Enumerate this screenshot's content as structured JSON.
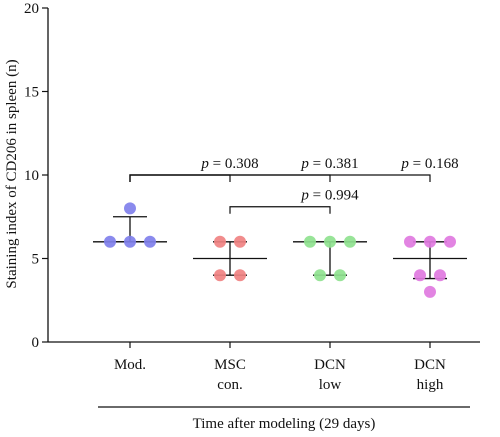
{
  "chart_data": {
    "type": "scatter",
    "title": "",
    "ylabel": "Staining index of CD206 in spleen (n)",
    "xlabel": "Time after modeling (29 days)",
    "ylim": [
      0,
      20
    ],
    "yticks": [
      0,
      5,
      10,
      15,
      20
    ],
    "grid": false,
    "groups": [
      {
        "name": "Mod.",
        "lines": [
          "Mod."
        ],
        "color": "#8080ec",
        "points": [
          6,
          6,
          6,
          8
        ],
        "mean": 6,
        "err_low": 6,
        "err_high": 7.5
      },
      {
        "name": "MSC con.",
        "lines": [
          "MSC",
          "con."
        ],
        "color": "#f08282",
        "points": [
          6,
          6,
          4,
          4
        ],
        "mean": 5,
        "err_low": 4,
        "err_high": 6
      },
      {
        "name": "DCN low",
        "lines": [
          "DCN",
          "low"
        ],
        "color": "#8fe28f",
        "points": [
          6,
          6,
          6,
          4,
          4
        ],
        "mean": 6,
        "err_low": 4,
        "err_high": 6
      },
      {
        "name": "DCN high",
        "lines": [
          "DCN",
          "high"
        ],
        "color": "#e07ae0",
        "points": [
          6,
          6,
          6,
          4,
          4,
          3
        ],
        "mean": 5,
        "err_low": 3.8,
        "err_high": 6
      }
    ],
    "annotations": [
      {
        "text": "p = 0.308",
        "from": 0,
        "to": 1,
        "level": 10
      },
      {
        "text": "p = 0.381",
        "from": 0,
        "to": 2,
        "level": 10
      },
      {
        "text": "p = 0.168",
        "from": 0,
        "to": 3,
        "level": 10
      },
      {
        "text": "p = 0.994",
        "from": 1,
        "to": 2,
        "level": 8.1
      }
    ]
  }
}
